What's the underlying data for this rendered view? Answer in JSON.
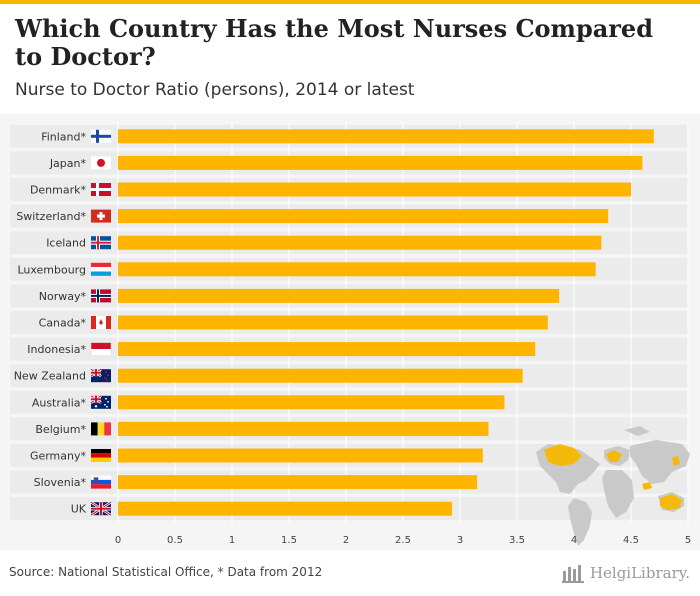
{
  "header": {
    "title": "Which Country Has the Most Nurses Compared to Doctor?",
    "subtitle": "Nurse to Doctor Ratio (persons), 2014 or latest"
  },
  "footer": {
    "source": "Source: National Statistical Office, * Data from 2012",
    "brand": "HelgiLibrary."
  },
  "colors": {
    "bar": "#ffb400",
    "accent": "#f5b700",
    "map": "#c8c8c8",
    "map_highlight": "#f5b700"
  },
  "chart_data": {
    "type": "bar",
    "orientation": "horizontal",
    "title": "Which Country Has the Most Nurses Compared to Doctor?",
    "subtitle": "Nurse to Doctor Ratio (persons), 2014 or latest",
    "categories": [
      "Finland*",
      "Japan*",
      "Denmark*",
      "Switzerland*",
      "Iceland",
      "Luxembourg",
      "Norway*",
      "Canada*",
      "Indonesia*",
      "New Zealand",
      "Australia*",
      "Belgium*",
      "Germany*",
      "Slovenia*",
      "UK"
    ],
    "flags": [
      "finland",
      "japan",
      "denmark",
      "switzerland",
      "iceland",
      "luxembourg",
      "norway",
      "canada",
      "indonesia",
      "new-zealand",
      "australia",
      "belgium",
      "germany",
      "slovenia",
      "uk"
    ],
    "values": [
      4.7,
      4.6,
      4.5,
      4.3,
      4.24,
      4.19,
      3.87,
      3.77,
      3.66,
      3.55,
      3.39,
      3.25,
      3.2,
      3.15,
      2.93
    ],
    "xticks": [
      "0",
      "0.5",
      "1",
      "1.5",
      "2",
      "2.5",
      "3",
      "3.5",
      "4",
      "4.5",
      "5"
    ],
    "xlim": [
      0,
      5
    ],
    "grid": true
  }
}
